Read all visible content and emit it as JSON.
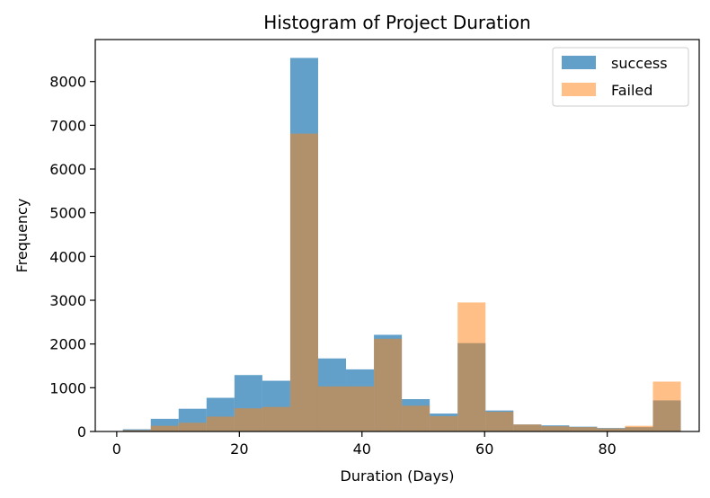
{
  "chart_data": {
    "type": "bar",
    "title": "Histogram of Project Duration",
    "xlabel": "Duration (Days)",
    "ylabel": "Frequency",
    "xlim": [
      -3.5,
      95
    ],
    "ylim": [
      0,
      8960
    ],
    "xticks": [
      0,
      20,
      40,
      60,
      80
    ],
    "yticks": [
      0,
      1000,
      2000,
      3000,
      4000,
      5000,
      6000,
      7000,
      8000
    ],
    "bin_edges": [
      1,
      5.55,
      10.1,
      14.65,
      19.2,
      23.75,
      28.3,
      32.85,
      37.4,
      41.95,
      46.5,
      51.05,
      55.6,
      60.15,
      64.7,
      69.25,
      73.8,
      78.35,
      82.9,
      87.45,
      92
    ],
    "grid": false,
    "legend_position": "top-right",
    "series": [
      {
        "name": "success",
        "color": "#1f77b4",
        "opacity": 0.7,
        "values": [
          50,
          290,
          520,
          770,
          1290,
          1160,
          8540,
          1670,
          1420,
          2210,
          740,
          410,
          2020,
          480,
          160,
          140,
          110,
          80,
          100,
          710
        ]
      },
      {
        "name": "Failed",
        "color": "#ff7f0e",
        "opacity": 0.5,
        "values": [
          30,
          130,
          200,
          340,
          530,
          560,
          6810,
          1030,
          1030,
          2120,
          590,
          350,
          2950,
          450,
          160,
          120,
          100,
          70,
          130,
          1140
        ]
      }
    ]
  }
}
